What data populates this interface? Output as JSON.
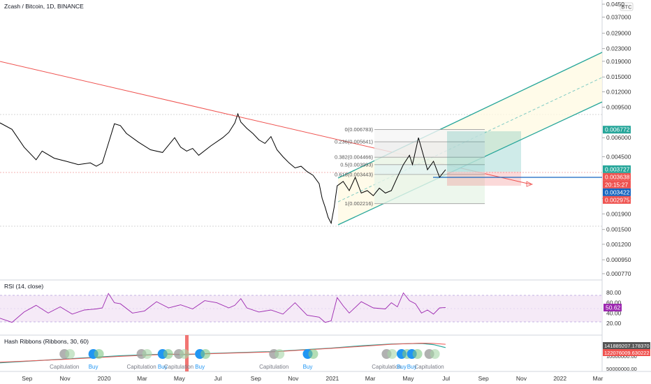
{
  "header": {
    "title": "Zcash / Bitcoin, 1D, BINANCE",
    "currency_badge": "BTC"
  },
  "chart_data": [
    {
      "type": "line",
      "pane": "price",
      "ylim": [
        0.00077,
        0.045
      ],
      "y_scale": "log",
      "x_ticks": [
        {
          "x": 0.045,
          "label": "Sep"
        },
        {
          "x": 0.108,
          "label": "Nov"
        },
        {
          "x": 0.173,
          "label": "2020"
        },
        {
          "x": 0.236,
          "label": "Mar"
        },
        {
          "x": 0.298,
          "label": "May"
        },
        {
          "x": 0.362,
          "label": "Jul"
        },
        {
          "x": 0.425,
          "label": "Sep"
        },
        {
          "x": 0.487,
          "label": "Nov"
        },
        {
          "x": 0.552,
          "label": "2021"
        },
        {
          "x": 0.615,
          "label": "Mar"
        },
        {
          "x": 0.678,
          "label": "May"
        },
        {
          "x": 0.741,
          "label": "Jul"
        },
        {
          "x": 0.803,
          "label": "Sep"
        },
        {
          "x": 0.866,
          "label": "Nov"
        },
        {
          "x": 0.93,
          "label": "2022"
        },
        {
          "x": 0.993,
          "label": "Mar"
        }
      ],
      "y_ticks": [
        "0.0450",
        "0.037000",
        "0.029000",
        "0.023000",
        "0.019000",
        "0.015000",
        "0.012000",
        "0.009500",
        "0.006000",
        "0.004500",
        "0.002400",
        "0.001900",
        "0.001500",
        "0.001200",
        "0.000950",
        "0.000770"
      ],
      "series": [
        {
          "color": "#000000",
          "x": [
            0.0,
            0.02,
            0.04,
            0.06,
            0.07,
            0.09,
            0.11,
            0.13,
            0.15,
            0.16,
            0.17,
            0.18,
            0.19,
            0.2,
            0.21,
            0.23,
            0.25,
            0.27,
            0.29,
            0.3,
            0.31,
            0.32,
            0.33,
            0.35,
            0.37,
            0.38,
            0.39,
            0.395,
            0.4,
            0.41,
            0.42,
            0.43,
            0.44,
            0.45,
            0.46,
            0.47,
            0.48,
            0.49,
            0.5,
            0.51,
            0.52,
            0.53,
            0.535,
            0.54,
            0.545,
            0.55,
            0.555,
            0.56,
            0.57,
            0.58,
            0.59,
            0.6,
            0.61,
            0.62,
            0.63,
            0.64,
            0.65,
            0.66,
            0.67,
            0.68,
            0.685,
            0.69,
            0.695,
            0.7,
            0.71,
            0.72,
            0.73,
            0.74
          ],
          "y": [
            0.0075,
            0.0068,
            0.0052,
            0.0043,
            0.0049,
            0.0044,
            0.0042,
            0.004,
            0.0041,
            0.0039,
            0.0041,
            0.0055,
            0.0074,
            0.0072,
            0.0064,
            0.0056,
            0.005,
            0.0048,
            0.006,
            0.0052,
            0.0049,
            0.0051,
            0.0046,
            0.0053,
            0.006,
            0.0065,
            0.0075,
            0.0086,
            0.0076,
            0.0069,
            0.0064,
            0.0058,
            0.0055,
            0.0061,
            0.005,
            0.0045,
            0.0041,
            0.0038,
            0.0039,
            0.0036,
            0.0034,
            0.003,
            0.0024,
            0.0021,
            0.0018,
            0.00165,
            0.0021,
            0.0029,
            0.0031,
            0.0027,
            0.0033,
            0.0026,
            0.0027,
            0.0025,
            0.0028,
            0.0026,
            0.0027,
            0.0033,
            0.004,
            0.0046,
            0.004,
            0.0049,
            0.006,
            0.0051,
            0.0037,
            0.0042,
            0.0033,
            0.0037
          ]
        }
      ],
      "price_tags": [
        {
          "label": "0.006772",
          "color": "#26a69a",
          "value": 0.006772
        },
        {
          "label": "0.003727",
          "color": "#26a69a",
          "value": 0.003727
        },
        {
          "label": "0.003638",
          "color": "#ef5350",
          "value": 0.003638
        },
        {
          "label": "20:15:27",
          "color": "#ef5350",
          "value": 0.00345
        },
        {
          "label": "0.003422",
          "color": "#1565c0",
          "value": 0.003422
        },
        {
          "label": "0.002975",
          "color": "#ef5350",
          "value": 0.002975
        }
      ],
      "fib_levels": [
        {
          "ratio": "0",
          "value": 0.006783,
          "label": "0(0.006783)"
        },
        {
          "ratio": "0.236",
          "value": 0.005641,
          "label": "0.236(0.005641)"
        },
        {
          "ratio": "0.382",
          "value": 0.004466,
          "label": "0.382(0.004466)"
        },
        {
          "ratio": "0.5",
          "value": 0.003993,
          "label": "0.5(0.003993)"
        },
        {
          "ratio": "0.618",
          "value": 0.003443,
          "label": "0.618(0.003443)"
        },
        {
          "ratio": "1",
          "value": 0.002216,
          "label": "1(0.002216)"
        }
      ]
    },
    {
      "type": "line",
      "pane": "rsi",
      "title": "RSI (14, close)",
      "ylim": [
        0,
        100
      ],
      "y_ticks": [
        "80.00",
        "60.00",
        "40.00",
        "20.00"
      ],
      "bands": [
        30,
        70
      ],
      "current_tag": {
        "label": "50.62",
        "value": 50.62
      },
      "series": [
        {
          "color": "#9c27b0",
          "x": [
            0.0,
            0.02,
            0.04,
            0.06,
            0.08,
            0.1,
            0.12,
            0.14,
            0.16,
            0.17,
            0.18,
            0.19,
            0.2,
            0.22,
            0.24,
            0.26,
            0.28,
            0.3,
            0.32,
            0.34,
            0.36,
            0.38,
            0.39,
            0.4,
            0.41,
            0.43,
            0.45,
            0.47,
            0.49,
            0.51,
            0.53,
            0.54,
            0.55,
            0.56,
            0.57,
            0.58,
            0.6,
            0.62,
            0.64,
            0.65,
            0.66,
            0.67,
            0.68,
            0.69,
            0.7,
            0.71,
            0.72,
            0.73,
            0.74
          ],
          "y": [
            30,
            22,
            42,
            55,
            40,
            52,
            38,
            46,
            48,
            50,
            78,
            60,
            58,
            40,
            44,
            62,
            50,
            56,
            48,
            64,
            60,
            50,
            55,
            68,
            50,
            42,
            46,
            38,
            60,
            36,
            32,
            22,
            25,
            70,
            54,
            40,
            62,
            50,
            48,
            60,
            52,
            79,
            64,
            58,
            40,
            46,
            38,
            50,
            50.62
          ]
        }
      ]
    },
    {
      "type": "line",
      "pane": "hash_ribbons",
      "title": "Hash Ribbons (Ribbons, 30, 60)",
      "y_ticks": [
        "10000000.00",
        "50000000.00"
      ],
      "value_tags": [
        {
          "label": "141889207.178370",
          "color": "#555555"
        },
        {
          "label": "122076009.630222",
          "color": "#ef5350"
        }
      ],
      "annotations": [
        {
          "text": "Capitulation",
          "x": 0.107,
          "kind": "capitulation"
        },
        {
          "text": "Buy",
          "x": 0.155,
          "kind": "buy"
        },
        {
          "text": "Capitulation",
          "x": 0.235,
          "kind": "capitulation"
        },
        {
          "text": "Buy",
          "x": 0.27,
          "kind": "buy"
        },
        {
          "text": "Capitulation",
          "x": 0.297,
          "kind": "capitulation"
        },
        {
          "text": "Buy",
          "x": 0.332,
          "kind": "buy"
        },
        {
          "text": "Capitulation",
          "x": 0.455,
          "kind": "capitulation"
        },
        {
          "text": "Buy",
          "x": 0.511,
          "kind": "buy"
        },
        {
          "text": "Capitulation",
          "x": 0.642,
          "kind": "capitulation"
        },
        {
          "text": "Buy",
          "x": 0.667,
          "kind": "buy"
        },
        {
          "text": "Buy",
          "x": 0.684,
          "kind": "buy"
        },
        {
          "text": "Capitulation",
          "x": 0.713,
          "kind": "capitulation"
        }
      ],
      "series": [
        {
          "color": "#26a69a",
          "x": [
            0.0,
            0.1,
            0.2,
            0.28,
            0.3,
            0.35,
            0.45,
            0.5,
            0.55,
            0.6,
            0.65,
            0.7,
            0.72,
            0.74
          ],
          "y": [
            20,
            32,
            44,
            50,
            47,
            52,
            58,
            64,
            70,
            78,
            84,
            86,
            82,
            72
          ]
        },
        {
          "color": "#ef5350",
          "x": [
            0.0,
            0.1,
            0.2,
            0.28,
            0.3,
            0.35,
            0.45,
            0.5,
            0.55,
            0.6,
            0.65,
            0.7,
            0.72,
            0.74
          ],
          "y": [
            22,
            31,
            42,
            49,
            49,
            51,
            57,
            63,
            69,
            76,
            83,
            87,
            86,
            83
          ]
        }
      ]
    }
  ]
}
